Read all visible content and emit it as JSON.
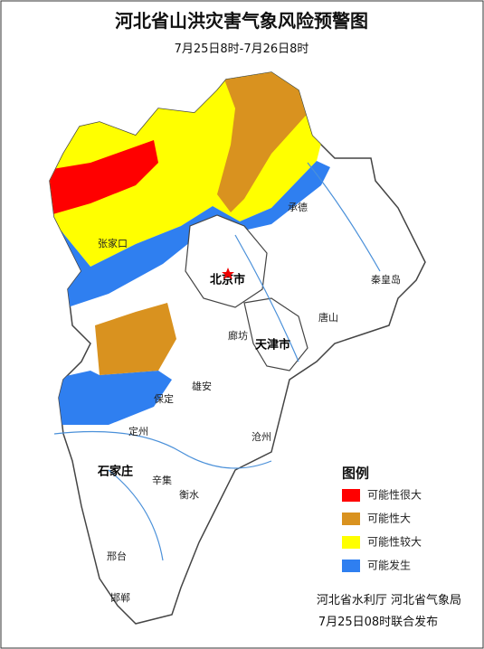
{
  "header": {
    "title": "河北省山洪灾害气象风险预警图",
    "subtitle": "7月25日8时-7月26日8时"
  },
  "cities": [
    "承德",
    "张家口",
    "北京市",
    "秦皇岛",
    "唐山",
    "廊坊",
    "天津市",
    "保定",
    "雄安",
    "沧州",
    "定州",
    "石家庄",
    "辛集",
    "衡水",
    "邢台",
    "邯郸"
  ],
  "legend": {
    "title": "图例",
    "items": [
      {
        "label": "可能性很大",
        "color": "#ff0000"
      },
      {
        "label": "可能性大",
        "color": "#d9921f"
      },
      {
        "label": "可能性较大",
        "color": "#ffff00"
      },
      {
        "label": "可能发生",
        "color": "#2f7ff0"
      }
    ]
  },
  "footer": [
    "河北省水利厅  河北省气象局",
    "7月25日08时联合发布"
  ]
}
